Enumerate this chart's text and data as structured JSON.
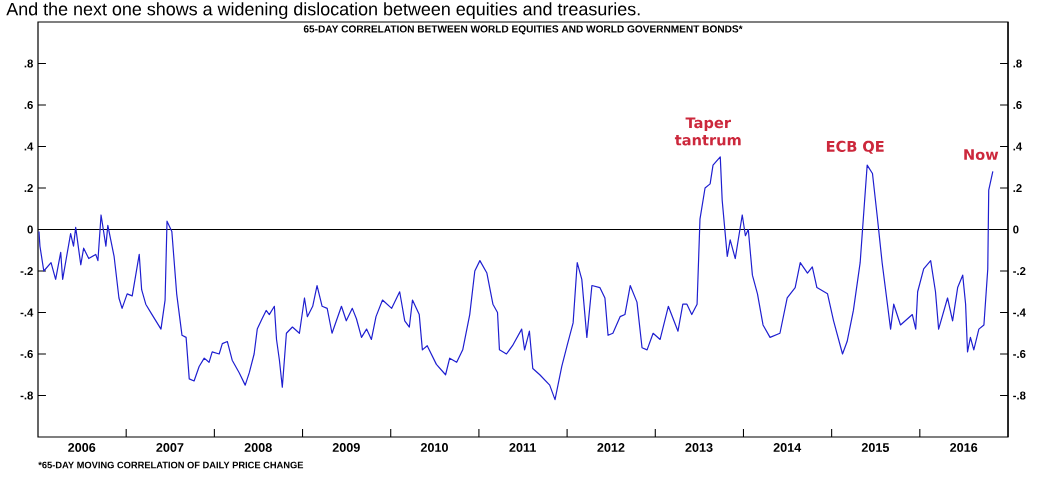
{
  "chart_data": {
    "type": "line",
    "title": "65-DAY CORRELATION BETWEEN WORLD EQUITIES AND WORLD GOVERNMENT BONDS*",
    "subtitle": "And the next one shows a widening dislocation between equities and treasuries.",
    "annotations": [
      {
        "text": "Taper tantrum",
        "x": "2013-09-27",
        "y": 0.35
      },
      {
        "text": "ECB QE",
        "x": "2015-05-28",
        "y": 0.31
      },
      {
        "text": "Now",
        "x": "2016-10-30",
        "y": 0.28
      },
      "*65-DAY MOVING CORRELATION OF DAILY PRICE CHANGE"
    ],
    "color": "#1f1fd0",
    "x": [
      "2006-01-05",
      "2006-01-09",
      "2006-01-25",
      "2006-02-24",
      "2006-03-15",
      "2006-04-05",
      "2006-04-13",
      "2006-05-16",
      "2006-05-28",
      "2006-06-06",
      "2006-06-27",
      "2006-07-09",
      "2006-07-30",
      "2006-08-28",
      "2006-09-06",
      "2006-09-19",
      "2006-10-09",
      "2006-10-17",
      "2006-11-12",
      "2006-12-02",
      "2006-12-15",
      "2007-01-05",
      "2007-01-26",
      "2007-02-24",
      "2007-03-06",
      "2007-03-23",
      "2007-04-18",
      "2007-05-25",
      "2007-06-11",
      "2007-06-19",
      "2007-07-09",
      "2007-07-29",
      "2007-08-20",
      "2007-09-06",
      "2007-09-19",
      "2007-10-09",
      "2007-10-30",
      "2007-11-20",
      "2007-12-10",
      "2007-12-23",
      "2008-01-21",
      "2008-02-03",
      "2008-02-24",
      "2008-03-15",
      "2008-04-13",
      "2008-05-08",
      "2008-05-25",
      "2008-06-14",
      "2008-06-27",
      "2008-07-17",
      "2008-08-03",
      "2008-08-16",
      "2008-09-06",
      "2008-09-15",
      "2008-09-27",
      "2008-10-09",
      "2008-10-26",
      "2008-11-20",
      "2008-12-19",
      "2009-01-09",
      "2009-01-21",
      "2009-02-12",
      "2009-03-02",
      "2009-03-23",
      "2009-04-13",
      "2009-05-03",
      "2009-06-11",
      "2009-07-01",
      "2009-07-26",
      "2009-08-12",
      "2009-09-02",
      "2009-09-23",
      "2009-10-13",
      "2009-11-01",
      "2009-11-28",
      "2010-01-05",
      "2010-02-07",
      "2010-02-28",
      "2010-03-19",
      "2010-04-01",
      "2010-04-29",
      "2010-05-12",
      "2010-06-01",
      "2010-07-09",
      "2010-08-16",
      "2010-09-02",
      "2010-10-01",
      "2010-10-26",
      "2010-11-24",
      "2010-12-15",
      "2011-01-05",
      "2011-02-03",
      "2011-02-28",
      "2011-03-19",
      "2011-03-27",
      "2011-04-25",
      "2011-05-20",
      "2011-06-27",
      "2011-07-09",
      "2011-07-29",
      "2011-08-12",
      "2011-09-10",
      "2011-10-21",
      "2011-11-12",
      "2011-12-10",
      "2012-01-01",
      "2012-01-26",
      "2012-02-12",
      "2012-03-02",
      "2012-03-23",
      "2012-04-13",
      "2012-05-16",
      "2012-06-06",
      "2012-06-19",
      "2012-07-09",
      "2012-08-08",
      "2012-08-28",
      "2012-09-19",
      "2012-10-17",
      "2012-11-07",
      "2012-11-28",
      "2012-12-23",
      "2013-01-21",
      "2013-02-24",
      "2013-04-05",
      "2013-04-25",
      "2013-05-12",
      "2013-06-01",
      "2013-06-23",
      "2013-07-05",
      "2013-07-26",
      "2013-08-16",
      "2013-08-28",
      "2013-09-27",
      "2013-10-05",
      "2013-10-26",
      "2013-11-07",
      "2013-11-28",
      "2013-12-27",
      "2014-01-09",
      "2014-01-21",
      "2014-02-07",
      "2014-02-28",
      "2014-03-23",
      "2014-04-21",
      "2014-06-01",
      "2014-07-01",
      "2014-08-03",
      "2014-08-24",
      "2014-09-23",
      "2014-10-13",
      "2014-11-01",
      "2014-12-15",
      "2015-01-09",
      "2015-02-15",
      "2015-03-06",
      "2015-04-01",
      "2015-04-29",
      "2015-05-28",
      "2015-06-19",
      "2015-07-09",
      "2015-07-29",
      "2015-09-02",
      "2015-09-15",
      "2015-10-13",
      "2015-12-01",
      "2015-12-15",
      "2015-12-23",
      "2016-01-17",
      "2016-02-15",
      "2016-03-06",
      "2016-03-19",
      "2016-04-25",
      "2016-05-16",
      "2016-06-06",
      "2016-06-27",
      "2016-07-09",
      "2016-07-17",
      "2016-07-29",
      "2016-08-12",
      "2016-09-02",
      "2016-09-23",
      "2016-10-09",
      "2016-10-13",
      "2016-10-30"
    ],
    "values": [
      -0.01,
      -0.08,
      -0.2,
      -0.16,
      -0.24,
      -0.11,
      -0.24,
      -0.02,
      -0.08,
      0.01,
      -0.17,
      -0.09,
      -0.14,
      -0.12,
      -0.15,
      0.07,
      -0.08,
      0.02,
      -0.13,
      -0.33,
      -0.38,
      -0.31,
      -0.32,
      -0.12,
      -0.29,
      -0.36,
      -0.41,
      -0.48,
      -0.34,
      0.04,
      -0.01,
      -0.31,
      -0.51,
      -0.52,
      -0.72,
      -0.73,
      -0.66,
      -0.62,
      -0.64,
      -0.59,
      -0.6,
      -0.55,
      -0.54,
      -0.63,
      -0.69,
      -0.75,
      -0.69,
      -0.6,
      -0.48,
      -0.43,
      -0.39,
      -0.41,
      -0.37,
      -0.53,
      -0.63,
      -0.76,
      -0.5,
      -0.47,
      -0.5,
      -0.33,
      -0.42,
      -0.37,
      -0.27,
      -0.37,
      -0.38,
      -0.5,
      -0.37,
      -0.44,
      -0.38,
      -0.43,
      -0.52,
      -0.48,
      -0.53,
      -0.42,
      -0.34,
      -0.38,
      -0.3,
      -0.44,
      -0.47,
      -0.34,
      -0.41,
      -0.58,
      -0.56,
      -0.65,
      -0.7,
      -0.62,
      -0.64,
      -0.58,
      -0.41,
      -0.2,
      -0.15,
      -0.21,
      -0.36,
      -0.4,
      -0.58,
      -0.6,
      -0.56,
      -0.48,
      -0.58,
      -0.49,
      -0.67,
      -0.7,
      -0.75,
      -0.82,
      -0.66,
      -0.56,
      -0.45,
      -0.16,
      -0.24,
      -0.52,
      -0.27,
      -0.28,
      -0.33,
      -0.51,
      -0.5,
      -0.42,
      -0.41,
      -0.27,
      -0.35,
      -0.57,
      -0.58,
      -0.5,
      -0.53,
      -0.37,
      -0.49,
      -0.36,
      -0.36,
      -0.41,
      -0.36,
      0.05,
      0.2,
      0.22,
      0.31,
      0.35,
      0.14,
      -0.13,
      -0.05,
      -0.14,
      0.07,
      -0.03,
      0.0,
      -0.22,
      -0.31,
      -0.46,
      -0.52,
      -0.5,
      -0.33,
      -0.28,
      -0.16,
      -0.21,
      -0.18,
      -0.28,
      -0.31,
      -0.44,
      -0.6,
      -0.54,
      -0.39,
      -0.16,
      0.31,
      0.27,
      0.06,
      -0.16,
      -0.48,
      -0.36,
      -0.46,
      -0.41,
      -0.48,
      -0.3,
      -0.19,
      -0.15,
      -0.3,
      -0.48,
      -0.33,
      -0.44,
      -0.28,
      -0.22,
      -0.36,
      -0.59,
      -0.52,
      -0.58,
      -0.48,
      -0.46,
      -0.19,
      0.19,
      0.28
    ],
    "xlim": [
      "2006-01-01",
      "2017-01-01"
    ],
    "xticks": [
      {
        "value": "2007-01-01",
        "label": null
      },
      {
        "value": "2008-01-01",
        "label": null
      },
      {
        "value": "2009-01-01",
        "label": null
      },
      {
        "value": "2010-01-01",
        "label": null
      },
      {
        "value": "2011-01-01",
        "label": null
      },
      {
        "value": "2012-01-01",
        "label": null
      },
      {
        "value": "2013-01-01",
        "label": null
      },
      {
        "value": "2014-01-01",
        "label": null
      },
      {
        "value": "2015-01-01",
        "label": null
      },
      {
        "value": "2016-01-01",
        "label": null
      },
      {
        "value": "2006-07-01",
        "label": "2006"
      },
      {
        "value": "2007-07-01",
        "label": "2007"
      },
      {
        "value": "2008-07-01",
        "label": "2008"
      },
      {
        "value": "2009-07-01",
        "label": "2009"
      },
      {
        "value": "2010-07-01",
        "label": "2010"
      },
      {
        "value": "2011-07-01",
        "label": "2011"
      },
      {
        "value": "2012-07-01",
        "label": "2012"
      },
      {
        "value": "2013-07-01",
        "label": "2013"
      },
      {
        "value": "2014-07-01",
        "label": "2014"
      },
      {
        "value": "2015-07-01",
        "label": "2015"
      },
      {
        "value": "2016-07-01",
        "label": "2016"
      }
    ],
    "ylim": [
      -1,
      1
    ],
    "yticks": [
      {
        "value": 0.8,
        "label": ".8"
      },
      {
        "value": 0.6,
        "label": ".6"
      },
      {
        "value": 0.4,
        "label": ".4"
      },
      {
        "value": 0.2,
        "label": ".2"
      },
      0,
      {
        "value": -0.2,
        "label": "-.2"
      },
      {
        "value": -0.4,
        "label": "-.4"
      },
      {
        "value": -0.6,
        "label": "-.6"
      },
      {
        "value": -0.8,
        "label": "-.8"
      }
    ],
    "y2lim": [
      -1,
      1
    ],
    "y2ticks": [
      {
        "value": 0.8,
        "label": ".8"
      },
      {
        "value": 0.6,
        "label": ".6"
      },
      {
        "value": 0.4,
        "label": ".4"
      },
      {
        "value": 0.2,
        "label": ".2"
      },
      0,
      {
        "value": -0.2,
        "label": "-.2"
      },
      {
        "value": -0.4,
        "label": "-.4"
      },
      {
        "value": -0.6,
        "label": "-.6"
      },
      {
        "value": -0.8,
        "label": "-.8"
      }
    ],
    "ref_lines": [
      {
        "axis": "y",
        "value": 0,
        "color": "#000000"
      }
    ]
  }
}
